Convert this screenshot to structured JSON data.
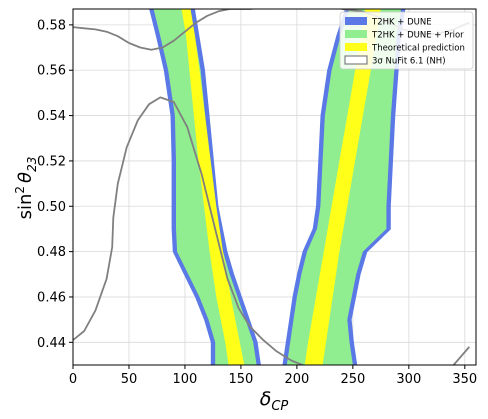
{
  "chart_data": {
    "type": "area",
    "xlabel_base": "δ",
    "xlabel_sub": "CP",
    "ylabel_main": "sin",
    "ylabel_sup": "2",
    "ylabel_theta": "θ",
    "ylabel_sub": "23",
    "xlim": [
      0,
      360
    ],
    "ylim": [
      0.43,
      0.587
    ],
    "x_ticks": [
      0,
      50,
      100,
      150,
      200,
      250,
      300,
      350
    ],
    "y_ticks": [
      0.44,
      0.46,
      0.48,
      0.5,
      0.52,
      0.54,
      0.56,
      0.58
    ],
    "y_tick_labels": [
      "0.44",
      "0.46",
      "0.48",
      "0.50",
      "0.52",
      "0.54",
      "0.56",
      "0.58"
    ],
    "grid": true,
    "legend_position": "top-right",
    "colors": {
      "blue": "#5b79e6",
      "green": "#90ee90",
      "yellow": "#ffff1a",
      "gray": "#808080"
    },
    "legend": [
      {
        "label": "T2HK + DUNE",
        "style": "blue-patch"
      },
      {
        "label": "T2HK + DUNE + Prior",
        "style": "green-patch"
      },
      {
        "label": "Theoretical prediction",
        "style": "yellow-patch"
      },
      {
        "label": "3σ NuFit 6.1 (NH)",
        "style": "outline-patch"
      }
    ],
    "series": [
      {
        "label": "T2HK + DUNE",
        "style": "blue",
        "bands": [
          {
            "y": [
              0.43,
              0.44,
              0.45,
              0.46,
              0.47,
              0.48,
              0.49,
              0.5,
              0.52,
              0.54,
              0.56,
              0.575,
              0.587
            ],
            "xmin": [
              124,
              124,
              118,
              110,
              100,
              90,
              89,
              89,
              89,
              88,
              82,
              75,
              69
            ],
            "xmax": [
              167,
              164,
              157,
              150,
              143,
              137,
              133,
              129,
              125,
              121,
              117,
              112,
              108
            ]
          },
          {
            "y": [
              0.43,
              0.44,
              0.45,
              0.46,
              0.47,
              0.48,
              0.49,
              0.5,
              0.52,
              0.54,
              0.56,
              0.575,
              0.587
            ],
            "xmin": [
              188,
              191,
              194,
              197,
              201,
              206,
              215,
              218,
              220,
              222,
              228,
              236,
              244
            ],
            "xmax": [
              253,
              250,
              248,
              252,
              256,
              262,
              283,
              283,
              285,
              287,
              290,
              292,
              296
            ]
          }
        ]
      },
      {
        "label": "T2HK + DUNE + Prior",
        "style": "green",
        "bands": [
          {
            "y": [
              0.43,
              0.44,
              0.45,
              0.46,
              0.47,
              0.48,
              0.49,
              0.5,
              0.52,
              0.54,
              0.56,
              0.575,
              0.587
            ],
            "xmin": [
              127,
              127,
              121,
              113,
              103,
              93,
              92,
              92,
              92,
              91,
              85,
              78,
              72
            ],
            "xmax": [
              164,
              161,
              154,
              147,
              140,
              134,
              130,
              126,
              122,
              118,
              114,
              109,
              105
            ]
          },
          {
            "y": [
              0.43,
              0.44,
              0.45,
              0.46,
              0.47,
              0.48,
              0.49,
              0.5,
              0.52,
              0.54,
              0.56,
              0.575,
              0.587
            ],
            "xmin": [
              191,
              194,
              197,
              200,
              204,
              209,
              218,
              221,
              223,
              225,
              231,
              239,
              247
            ],
            "xmax": [
              250,
              247,
              245,
              249,
              253,
              259,
              280,
              280,
              282,
              284,
              287,
              289,
              293
            ]
          }
        ]
      },
      {
        "label": "Theoretical prediction",
        "style": "yellow",
        "bands": [
          {
            "y": [
              0.43,
              0.44,
              0.46,
              0.48,
              0.5,
              0.52,
              0.54,
              0.56,
              0.575,
              0.587
            ],
            "xmin": [
              139,
              136,
              128,
              122,
              117,
              112,
              108,
              104,
              101,
              97
            ],
            "xmax": [
              153,
              149,
              141,
              134,
              128,
              123,
              118,
              113,
              109,
              105
            ]
          },
          {
            "y": [
              0.43,
              0.44,
              0.46,
              0.48,
              0.5,
              0.52,
              0.54,
              0.56,
              0.575,
              0.587
            ],
            "xmin": [
              207,
              210,
              217,
              224,
              231,
              238,
              245,
              252,
              257,
              261
            ],
            "xmax": [
              223,
              226,
              232,
              238,
              245,
              252,
              259,
              266,
              271,
              275
            ]
          }
        ]
      },
      {
        "label": "3σ NuFit 6.1 (NH)",
        "style": "outline",
        "curves": [
          {
            "x": [
              0,
              10,
              20,
              30,
              40,
              50,
              60,
              70,
              80,
              90,
              100,
              110,
              120,
              130,
              140,
              150,
              160
            ],
            "y": [
              0.579,
              0.5785,
              0.578,
              0.577,
              0.575,
              0.572,
              0.57,
              0.569,
              0.57,
              0.573,
              0.577,
              0.581,
              0.584,
              0.586,
              0.587,
              0.587,
              0.587
            ]
          },
          {
            "x": [
              0,
              10,
              20,
              30,
              35,
              36,
              40,
              48,
              58,
              68,
              78,
              90,
              102,
              115,
              128,
              138,
              148,
              158,
              170,
              182,
              195,
              210,
              225,
              240,
              260,
              280,
              300,
              320,
              340,
              354
            ],
            "y": [
              0.441,
              0.445,
              0.454,
              0.468,
              0.482,
              0.495,
              0.51,
              0.526,
              0.538,
              0.545,
              0.548,
              0.546,
              0.535,
              0.514,
              0.488,
              0.468,
              0.455,
              0.447,
              0.441,
              0.436,
              0.432,
              0.429,
              0.428,
              0.427,
              0.426,
              0.425,
              0.424,
              0.425,
              0.43,
              0.438
            ]
          },
          {
            "x": [
              240,
              258,
              270,
              282,
              295,
              310,
              325,
              340,
              354
            ],
            "y": [
              0.587,
              0.586,
              0.584,
              0.581,
              0.578,
              0.576,
              0.576,
              0.578,
              0.581
            ]
          }
        ]
      }
    ]
  }
}
